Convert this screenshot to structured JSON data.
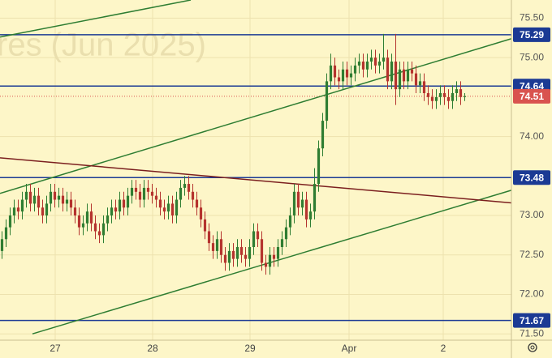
{
  "chart_data": {
    "type": "candlestick",
    "watermark": "res (Jun 2025)",
    "x": [
      0,
      1,
      2,
      3,
      4,
      5,
      6,
      7,
      8,
      9,
      10,
      11,
      12,
      13,
      14,
      15,
      16,
      17,
      18,
      19,
      20,
      21,
      22,
      23,
      24,
      25,
      26,
      27,
      28,
      29,
      30,
      31,
      32,
      33,
      34,
      35,
      36,
      37,
      38,
      39,
      40,
      41,
      42,
      43,
      44,
      45,
      46,
      47,
      48,
      49,
      50,
      51,
      52,
      53,
      54,
      55,
      56,
      57,
      58,
      59,
      60,
      61,
      62,
      63,
      64,
      65,
      66,
      67,
      68,
      69,
      70,
      71,
      72,
      73,
      74,
      75,
      76,
      77,
      78,
      79,
      80,
      81,
      82,
      83,
      84,
      85,
      86,
      87,
      88,
      89,
      90,
      91,
      92,
      93,
      94,
      95,
      96,
      97,
      98,
      99,
      100,
      101,
      102,
      103,
      104,
      105,
      106,
      107,
      108,
      109,
      110,
      111,
      112,
      113,
      114
    ],
    "open": [
      72.55,
      72.7,
      72.85,
      73.0,
      73.1,
      73.05,
      73.2,
      73.3,
      73.15,
      73.25,
      73.1,
      73.0,
      73.15,
      73.3,
      73.2,
      73.25,
      73.15,
      73.2,
      73.1,
      73.0,
      72.85,
      72.9,
      73.05,
      72.9,
      72.8,
      72.75,
      72.9,
      73.0,
      73.1,
      73.05,
      73.2,
      73.1,
      73.25,
      73.35,
      73.3,
      73.2,
      73.35,
      73.3,
      73.25,
      73.2,
      73.1,
      73.05,
      73.15,
      73.0,
      73.2,
      73.35,
      73.4,
      73.3,
      73.2,
      73.1,
      72.95,
      72.8,
      72.65,
      72.55,
      72.7,
      72.5,
      72.4,
      72.55,
      72.45,
      72.6,
      72.5,
      72.45,
      72.6,
      72.8,
      72.7,
      72.4,
      72.35,
      72.5,
      72.45,
      72.6,
      72.7,
      72.85,
      73.0,
      73.3,
      73.1,
      73.2,
      72.95,
      73.05,
      73.4,
      73.85,
      74.2,
      74.7,
      74.9,
      74.75,
      74.7,
      74.85,
      74.75,
      74.8,
      74.9,
      74.95,
      74.85,
      74.95,
      75.0,
      74.9,
      74.95,
      75.0,
      74.7,
      74.95,
      74.6,
      74.85,
      74.7,
      74.85,
      74.8,
      74.65,
      74.7,
      74.55,
      74.5,
      74.45,
      74.5,
      74.55,
      74.5,
      74.45,
      74.55,
      74.6,
      74.5
    ],
    "high": [
      72.8,
      72.95,
      73.1,
      73.2,
      73.2,
      73.3,
      73.4,
      73.4,
      73.35,
      73.35,
      73.2,
      73.25,
      73.4,
      73.4,
      73.35,
      73.35,
      73.3,
      73.3,
      73.2,
      73.1,
      73.0,
      73.15,
      73.15,
      73.0,
      72.9,
      73.0,
      73.1,
      73.2,
      73.2,
      73.3,
      73.3,
      73.35,
      73.45,
      73.45,
      73.4,
      73.45,
      73.45,
      73.4,
      73.35,
      73.3,
      73.2,
      73.25,
      73.25,
      73.3,
      73.45,
      73.5,
      73.5,
      73.4,
      73.3,
      73.2,
      73.05,
      72.9,
      72.75,
      72.8,
      72.8,
      72.6,
      72.65,
      72.65,
      72.7,
      72.7,
      72.6,
      72.7,
      72.9,
      72.9,
      72.8,
      72.5,
      72.6,
      72.6,
      72.7,
      72.8,
      72.95,
      73.1,
      73.4,
      73.4,
      73.3,
      73.3,
      73.15,
      73.6,
      73.95,
      74.3,
      74.8,
      75.05,
      75.0,
      74.85,
      74.95,
      74.95,
      74.9,
      75.0,
      75.05,
      75.05,
      75.05,
      75.1,
      75.1,
      75.05,
      75.3,
      75.1,
      75.05,
      75.3,
      74.95,
      74.95,
      74.95,
      74.95,
      74.9,
      74.8,
      74.8,
      74.65,
      74.6,
      74.6,
      74.65,
      74.65,
      74.6,
      74.65,
      74.7,
      74.7,
      74.55
    ],
    "low": [
      72.45,
      72.6,
      72.75,
      72.9,
      72.95,
      72.95,
      73.1,
      73.05,
      73.05,
      73.0,
      72.9,
      72.9,
      73.05,
      73.1,
      73.1,
      73.05,
      73.05,
      73.0,
      72.9,
      72.75,
      72.75,
      72.8,
      72.8,
      72.7,
      72.65,
      72.65,
      72.8,
      72.9,
      72.95,
      72.95,
      73.0,
      73.0,
      73.15,
      73.2,
      73.1,
      73.1,
      73.2,
      73.15,
      73.1,
      73.0,
      72.95,
      72.95,
      72.9,
      72.9,
      73.1,
      73.25,
      73.2,
      73.1,
      73.0,
      72.85,
      72.7,
      72.55,
      72.45,
      72.45,
      72.4,
      72.3,
      72.3,
      72.35,
      72.35,
      72.4,
      72.35,
      72.35,
      72.5,
      72.6,
      72.3,
      72.25,
      72.25,
      72.35,
      72.35,
      72.5,
      72.6,
      72.75,
      72.9,
      73.0,
      73.0,
      72.85,
      72.85,
      72.95,
      73.3,
      73.75,
      74.1,
      74.6,
      74.65,
      74.6,
      74.6,
      74.65,
      74.65,
      74.7,
      74.8,
      74.75,
      74.75,
      74.85,
      74.8,
      74.8,
      74.85,
      74.6,
      74.6,
      74.4,
      74.5,
      74.6,
      74.6,
      74.7,
      74.55,
      74.55,
      74.45,
      74.4,
      74.35,
      74.35,
      74.4,
      74.4,
      74.35,
      74.35,
      74.45,
      74.4,
      74.45
    ],
    "close": [
      72.7,
      72.85,
      73.0,
      73.1,
      73.05,
      73.2,
      73.3,
      73.15,
      73.25,
      73.1,
      73.0,
      73.15,
      73.3,
      73.2,
      73.25,
      73.15,
      73.2,
      73.1,
      73.0,
      72.85,
      72.9,
      73.05,
      72.9,
      72.8,
      72.75,
      72.9,
      73.0,
      73.1,
      73.05,
      73.2,
      73.1,
      73.25,
      73.35,
      73.3,
      73.2,
      73.35,
      73.3,
      73.25,
      73.2,
      73.1,
      73.05,
      73.15,
      73.0,
      73.2,
      73.35,
      73.4,
      73.3,
      73.2,
      73.1,
      72.95,
      72.8,
      72.65,
      72.55,
      72.7,
      72.5,
      72.4,
      72.55,
      72.45,
      72.6,
      72.5,
      72.45,
      72.6,
      72.8,
      72.7,
      72.4,
      72.35,
      72.5,
      72.45,
      72.6,
      72.7,
      72.85,
      73.0,
      73.3,
      73.1,
      73.2,
      72.95,
      73.05,
      73.4,
      73.85,
      74.2,
      74.7,
      74.9,
      74.75,
      74.7,
      74.85,
      74.75,
      74.8,
      74.9,
      74.95,
      74.85,
      74.95,
      75.0,
      74.9,
      74.95,
      75.0,
      74.7,
      74.95,
      74.6,
      74.85,
      74.7,
      74.85,
      74.8,
      74.65,
      74.7,
      74.55,
      74.5,
      74.45,
      74.5,
      74.55,
      74.5,
      74.45,
      74.55,
      74.6,
      74.5,
      74.51
    ],
    "up_color": "#2f7d32",
    "down_color": "#b5332e",
    "xlim": [
      -0.5,
      125.5
    ],
    "ylim": [
      71.42,
      75.73
    ],
    "xticks": [
      {
        "value": 13.1,
        "label": "27"
      },
      {
        "value": 37.1,
        "label": "28"
      },
      {
        "value": 61.1,
        "label": "29"
      },
      {
        "value": 85.5,
        "label": "Apr"
      },
      {
        "value": 108.7,
        "label": "2"
      }
    ],
    "yticks": [
      {
        "value": 75.5,
        "label": "75.50"
      },
      {
        "value": 75,
        "label": "75.00"
      },
      {
        "value": 74,
        "label": "74.00"
      },
      {
        "value": 73,
        "label": "73.00"
      },
      {
        "value": 72.5,
        "label": "72.50"
      },
      {
        "value": 72,
        "label": "72.00"
      },
      {
        "value": 71.5,
        "label": "71.50"
      }
    ],
    "grid": true,
    "levels": [
      {
        "value": 75.29,
        "color": "#1b3a94"
      },
      {
        "value": 74.64,
        "color": "#1b3a94"
      },
      {
        "value": 73.48,
        "color": "#1b3a94"
      },
      {
        "value": 71.67,
        "color": "#1b3a94"
      }
    ],
    "last_price": {
      "value": 74.51,
      "color": "#d9534f"
    },
    "trend_lines": [
      {
        "color": "#2e7d32",
        "x": [
          -0.5,
          46.5
        ],
        "y": [
          75.26,
          75.73
        ]
      },
      {
        "color": "#2e7d32",
        "x": [
          -0.5,
          125.5
        ],
        "y": [
          73.28,
          75.24
        ]
      },
      {
        "color": "#2e7d32",
        "x": [
          7.5,
          125.5
        ],
        "y": [
          71.5,
          73.32
        ]
      },
      {
        "color": "#7b1f1f",
        "x": [
          -0.5,
          125.5
        ],
        "y": [
          73.73,
          73.16
        ]
      }
    ]
  }
}
